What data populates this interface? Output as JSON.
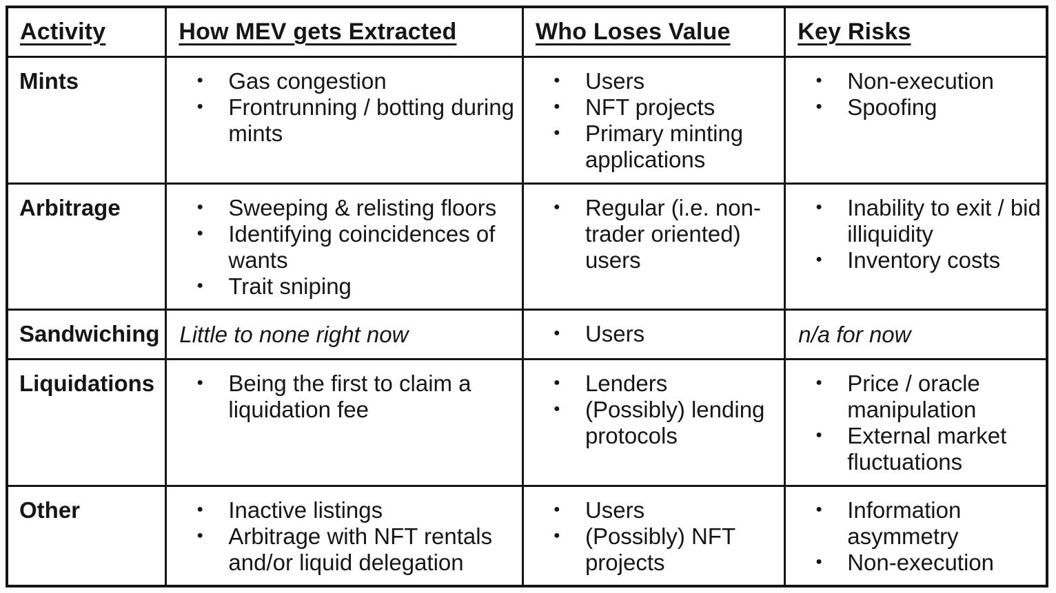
{
  "table": {
    "columns": [
      "Activity",
      "How MEV gets Extracted",
      "Who Loses Value",
      "Key Risks"
    ],
    "rows": [
      {
        "activity": "Mints",
        "how": {
          "items": [
            "Gas congestion",
            "Frontrunning / botting during mints"
          ]
        },
        "who": {
          "items": [
            "Users",
            "NFT projects",
            "Primary minting applications"
          ]
        },
        "risks": {
          "items": [
            "Non-execution",
            "Spoofing"
          ]
        }
      },
      {
        "activity": "Arbitrage",
        "how": {
          "items": [
            "Sweeping & relisting floors",
            "Identifying coincidences of wants",
            "Trait sniping"
          ]
        },
        "who": {
          "items": [
            "Regular (i.e. non-trader oriented) users"
          ]
        },
        "risks": {
          "items": [
            "Inability to exit / bid illiquidity",
            "Inventory costs"
          ]
        }
      },
      {
        "activity": "Sandwiching",
        "how": {
          "note": "Little to none right now"
        },
        "who": {
          "items": [
            "Users"
          ]
        },
        "risks": {
          "note": "n/a for now"
        }
      },
      {
        "activity": "Liquidations",
        "how": {
          "items": [
            "Being the first to claim a liquidation fee"
          ]
        },
        "who": {
          "items": [
            "Lenders",
            "(Possibly) lending protocols"
          ]
        },
        "risks": {
          "items": [
            "Price / oracle manipulation",
            "External market fluctuations"
          ]
        }
      },
      {
        "activity": "Other",
        "how": {
          "items": [
            "Inactive listings",
            "Arbitrage with NFT rentals and/or liquid delegation"
          ]
        },
        "who": {
          "items": [
            "Users",
            "(Possibly) NFT projects"
          ]
        },
        "risks": {
          "items": [
            "Information asymmetry",
            "Non-execution"
          ]
        }
      }
    ]
  }
}
